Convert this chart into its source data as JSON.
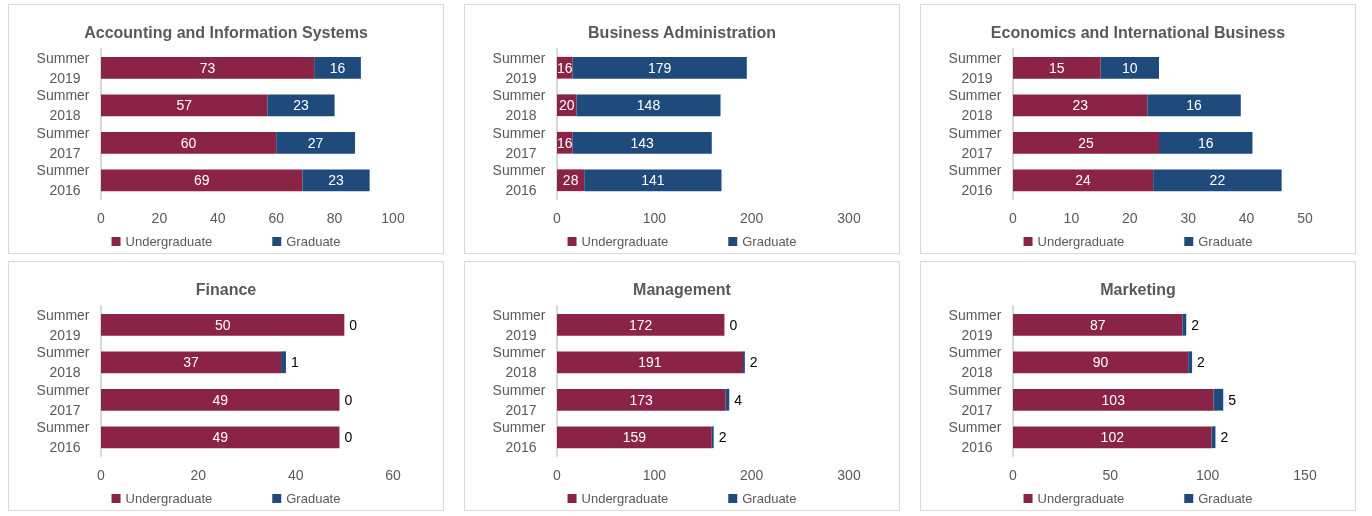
{
  "chart_data": [
    {
      "type": "bar",
      "orientation": "horizontal",
      "stacked": true,
      "title": "Accounting and Information Systems",
      "categories": [
        "Summer 2019",
        "Summer 2018",
        "Summer 2017",
        "Summer 2016"
      ],
      "series": [
        {
          "name": "Undergraduate",
          "color": "#8b2346",
          "values": [
            73,
            57,
            60,
            69
          ]
        },
        {
          "name": "Graduate",
          "color": "#1f4a7c",
          "values": [
            16,
            23,
            27,
            23
          ]
        }
      ],
      "xlim": [
        0,
        100
      ],
      "xticks": [
        0,
        20,
        40,
        60,
        80,
        100
      ],
      "data_labels": true,
      "legend": "bottom",
      "grid": false
    },
    {
      "type": "bar",
      "orientation": "horizontal",
      "stacked": true,
      "title": "Business Administration",
      "categories": [
        "Summer 2019",
        "Summer 2018",
        "Summer 2017",
        "Summer 2016"
      ],
      "series": [
        {
          "name": "Undergraduate",
          "color": "#8b2346",
          "values": [
            16,
            20,
            16,
            28
          ]
        },
        {
          "name": "Graduate",
          "color": "#1f4a7c",
          "values": [
            179,
            148,
            143,
            141
          ]
        }
      ],
      "xlim": [
        0,
        300
      ],
      "xticks": [
        0,
        100,
        200,
        300
      ],
      "data_labels": true,
      "legend": "bottom",
      "grid": false
    },
    {
      "type": "bar",
      "orientation": "horizontal",
      "stacked": true,
      "title": "Economics and International Business",
      "categories": [
        "Summer 2019",
        "Summer 2018",
        "Summer 2017",
        "Summer 2016"
      ],
      "series": [
        {
          "name": "Undergraduate",
          "color": "#8b2346",
          "values": [
            15,
            23,
            25,
            24
          ]
        },
        {
          "name": "Graduate",
          "color": "#1f4a7c",
          "values": [
            10,
            16,
            16,
            22
          ]
        }
      ],
      "xlim": [
        0,
        50
      ],
      "xticks": [
        0,
        10,
        20,
        30,
        40,
        50
      ],
      "data_labels": true,
      "legend": "bottom",
      "grid": false
    },
    {
      "type": "bar",
      "orientation": "horizontal",
      "stacked": true,
      "title": "Finance",
      "categories": [
        "Summer 2019",
        "Summer 2018",
        "Summer 2017",
        "Summer 2016"
      ],
      "series": [
        {
          "name": "Undergraduate",
          "color": "#8b2346",
          "values": [
            50,
            37,
            49,
            49
          ]
        },
        {
          "name": "Graduate",
          "color": "#1f4a7c",
          "values": [
            0,
            1,
            0,
            0
          ]
        }
      ],
      "xlim": [
        0,
        60
      ],
      "xticks": [
        0,
        20,
        40,
        60
      ],
      "data_labels": true,
      "legend": "bottom",
      "grid": false
    },
    {
      "type": "bar",
      "orientation": "horizontal",
      "stacked": true,
      "title": "Management",
      "categories": [
        "Summer 2019",
        "Summer 2018",
        "Summer 2017",
        "Summer 2016"
      ],
      "series": [
        {
          "name": "Undergraduate",
          "color": "#8b2346",
          "values": [
            172,
            191,
            173,
            159
          ]
        },
        {
          "name": "Graduate",
          "color": "#1f4a7c",
          "values": [
            0,
            2,
            4,
            2
          ]
        }
      ],
      "xlim": [
        0,
        300
      ],
      "xticks": [
        0,
        100,
        200,
        300
      ],
      "data_labels": true,
      "legend": "bottom",
      "grid": false
    },
    {
      "type": "bar",
      "orientation": "horizontal",
      "stacked": true,
      "title": "Marketing",
      "categories": [
        "Summer 2019",
        "Summer 2018",
        "Summer 2017",
        "Summer 2016"
      ],
      "series": [
        {
          "name": "Undergraduate",
          "color": "#8b2346",
          "values": [
            87,
            90,
            103,
            102
          ]
        },
        {
          "name": "Graduate",
          "color": "#1f4a7c",
          "values": [
            2,
            2,
            5,
            2
          ]
        }
      ],
      "xlim": [
        0,
        150
      ],
      "xticks": [
        0,
        50,
        100,
        150
      ],
      "data_labels": true,
      "legend": "bottom",
      "grid": false
    }
  ]
}
